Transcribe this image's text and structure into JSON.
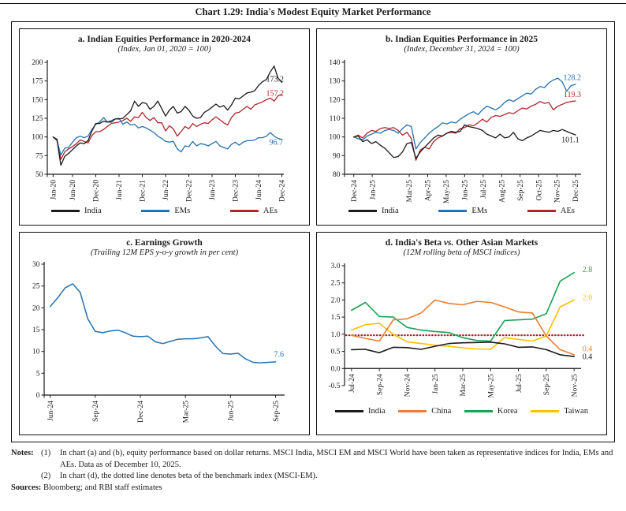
{
  "header": {
    "title": "Chart 1.29: India's Modest Equity Market Performance"
  },
  "colors": {
    "black": "#1a1a1a",
    "blue": "#2272b5",
    "red": "#b2242b",
    "orange": "#ed7d31",
    "green": "#1ca152",
    "yellow": "#ffc000",
    "dotted_red": "#a62024"
  },
  "chart_data": [
    {
      "id": "a",
      "type": "line",
      "title": "a. Indian Equities Performance in 2020-2024",
      "subtitle": "(Index, Jan 01, 2020 = 100)",
      "ylim": [
        50,
        200
      ],
      "yticks": [
        50,
        75,
        100,
        125,
        150,
        175,
        200
      ],
      "ytick_labels": [
        "50",
        "75",
        "100",
        "125",
        "150",
        "175",
        "200"
      ],
      "xlim": [
        -1.5,
        59.5
      ],
      "xticks": [
        {
          "pos": 0,
          "label": "Jan-20"
        },
        {
          "pos": 5,
          "label": "Jun-20"
        },
        {
          "pos": 11,
          "label": "Dec-20"
        },
        {
          "pos": 17,
          "label": "Jun-21"
        },
        {
          "pos": 23,
          "label": "Dec-21"
        },
        {
          "pos": 29,
          "label": "Jun-22"
        },
        {
          "pos": 35,
          "label": "Dec-22"
        },
        {
          "pos": 41,
          "label": "Jun-23"
        },
        {
          "pos": 47,
          "label": "Dec-23"
        },
        {
          "pos": 53,
          "label": "Jun-24"
        },
        {
          "pos": 59,
          "label": "Dec-24"
        }
      ],
      "series_x": [
        0,
        59
      ],
      "stroke_width": 1.3,
      "show_legend": true,
      "series": [
        {
          "name": "India",
          "color_key": "black",
          "values": [
            100,
            96,
            62,
            74,
            78,
            83,
            88,
            92,
            91,
            95,
            108,
            118,
            118,
            121,
            120,
            120,
            124,
            124,
            125,
            130,
            135,
            148,
            141,
            146,
            145,
            137,
            141,
            148,
            138,
            128,
            136,
            141,
            132,
            134,
            141,
            136,
            128,
            125,
            126,
            133,
            136,
            140,
            144,
            140,
            142,
            136,
            143,
            152,
            151,
            155,
            159,
            160,
            162,
            169,
            174,
            177,
            187,
            195,
            179,
            173.2
          ]
        },
        {
          "name": "EMs",
          "color_key": "blue",
          "values": [
            100,
            95,
            76,
            85,
            86,
            93,
            99,
            101,
            99,
            101,
            110,
            117,
            120,
            126,
            120,
            122,
            124,
            125,
            117,
            120,
            116,
            117,
            112,
            114,
            112,
            109,
            106,
            101,
            98,
            94,
            93,
            94,
            84,
            80,
            88,
            87,
            94,
            88,
            91,
            90,
            88,
            91,
            94,
            88,
            86,
            84,
            90,
            93,
            89,
            93,
            95,
            95,
            96,
            99,
            99,
            101,
            106,
            101,
            98,
            96.7
          ]
        },
        {
          "name": "AEs",
          "color_key": "red",
          "values": [
            100,
            97,
            70,
            80,
            84,
            87,
            91,
            96,
            94,
            92,
            102,
            107,
            107,
            110,
            114,
            118,
            119,
            120,
            122,
            125,
            121,
            127,
            126,
            133,
            126,
            122,
            126,
            119,
            119,
            108,
            115,
            111,
            101,
            107,
            114,
            111,
            118,
            114,
            117,
            119,
            118,
            123,
            127,
            123,
            119,
            116,
            126,
            132,
            133,
            137,
            141,
            137,
            143,
            145,
            147,
            150,
            152,
            148,
            155,
            157.2
          ]
        }
      ],
      "value_labels": [
        {
          "text": "173.2",
          "color_key": "black",
          "x": 59.5,
          "y": 174,
          "anchor": "end"
        },
        {
          "text": "157.2",
          "color_key": "red",
          "x": 59.5,
          "y": 155,
          "anchor": "end"
        },
        {
          "text": "96.7",
          "color_key": "blue",
          "x": 59.3,
          "y": 89.5,
          "anchor": "end"
        }
      ]
    },
    {
      "id": "b",
      "type": "line",
      "title": "b. Indian Equities Performance in 2025",
      "subtitle": "(Index, December 31, 2024 = 100)",
      "ylim": [
        80,
        140
      ],
      "yticks": [
        80,
        90,
        100,
        110,
        120,
        130,
        140
      ],
      "ytick_labels": [
        "80",
        "90",
        "100",
        "110",
        "120",
        "130",
        "140"
      ],
      "xlim": [
        -0.5,
        12.3
      ],
      "xticks": [
        {
          "pos": 0,
          "label": "Dec-24"
        },
        {
          "pos": 1,
          "label": "Jan-25"
        },
        {
          "pos": 3,
          "label": "Mar-25"
        },
        {
          "pos": 4,
          "label": "Apr-25"
        },
        {
          "pos": 5,
          "label": "May-25"
        },
        {
          "pos": 6,
          "label": "Jun-25"
        },
        {
          "pos": 7,
          "label": "Jul-25"
        },
        {
          "pos": 8,
          "label": "Aug-25"
        },
        {
          "pos": 9,
          "label": "Sep-25"
        },
        {
          "pos": 10,
          "label": "Oct-25"
        },
        {
          "pos": 11,
          "label": "Nov-25"
        },
        {
          "pos": 12,
          "label": "Dec-25"
        }
      ],
      "series_x": [
        0,
        12
      ],
      "stroke_width": 1.3,
      "show_legend": true,
      "series": [
        {
          "name": "India",
          "color_key": "black",
          "values": [
            100,
            100.5,
            97.5,
            98.5,
            96.5,
            97.5,
            95.5,
            94,
            91.5,
            89,
            89.5,
            92,
            96.5,
            97,
            88.5,
            92,
            94.5,
            97,
            99.5,
            101,
            100.5,
            102,
            103,
            102.5,
            103,
            106.5,
            105.5,
            105,
            104.5,
            103.5,
            101.5,
            100.5,
            99.5,
            101.5,
            99.5,
            100,
            102.5,
            99,
            98,
            99.5,
            100.5,
            102,
            103.5,
            103,
            102.5,
            103.5,
            103,
            104,
            103,
            102,
            101.1
          ]
        },
        {
          "name": "EMs",
          "color_key": "blue",
          "values": [
            100,
            99,
            98.5,
            100.5,
            101.5,
            102.5,
            102,
            103.5,
            104,
            103.5,
            102,
            104.5,
            106.5,
            105.5,
            93.5,
            97,
            99.5,
            102,
            104,
            105.5,
            107.5,
            107,
            108,
            107.5,
            109.5,
            111,
            112.5,
            113.5,
            112,
            114.5,
            116.5,
            115.5,
            114.5,
            116,
            118.5,
            120,
            119,
            120.5,
            122,
            123.5,
            123,
            125.5,
            127,
            126.5,
            129,
            130.5,
            131.5,
            129.5,
            124.5,
            127.5,
            128.2
          ]
        },
        {
          "name": "AEs",
          "color_key": "red",
          "values": [
            100,
            101,
            99.5,
            102,
            103.5,
            103,
            104.5,
            105,
            104.5,
            105,
            103.5,
            101,
            102.5,
            99,
            87.5,
            93,
            94.5,
            93.5,
            97.5,
            99.5,
            100.5,
            102,
            102.5,
            102,
            104.5,
            105,
            106.5,
            106,
            107.5,
            109.5,
            108,
            110.5,
            111.5,
            111,
            112,
            113,
            112.5,
            114,
            115.5,
            115,
            116.5,
            117.5,
            119,
            118,
            118.5,
            114.5,
            116.5,
            117.5,
            118.5,
            119,
            119.3
          ]
        }
      ],
      "value_labels": [
        {
          "text": "128.2",
          "color_key": "blue",
          "x": 12.3,
          "y": 130.5,
          "anchor": "end"
        },
        {
          "text": "119.3",
          "color_key": "red",
          "x": 12.3,
          "y": 121.5,
          "anchor": "end"
        },
        {
          "text": "101.1",
          "color_key": "black",
          "x": 12.2,
          "y": 97.2,
          "anchor": "end"
        }
      ]
    },
    {
      "id": "c",
      "type": "line",
      "title": "c. Earnings Growth",
      "subtitle": "(Trailing 12M EPS y-o-y growth in per cent)",
      "ylim": [
        0,
        30
      ],
      "yticks": [
        0,
        5,
        10,
        15,
        20,
        25,
        30
      ],
      "ytick_labels": [
        "0",
        "5",
        "10",
        "15",
        "20",
        "25",
        "30"
      ],
      "xlim": [
        -0.4,
        15.6
      ],
      "xticks": [
        {
          "pos": 0,
          "label": "Jun-24"
        },
        {
          "pos": 3,
          "label": "Sep-24"
        },
        {
          "pos": 6,
          "label": "Dec-24"
        },
        {
          "pos": 9,
          "label": "Mar-25"
        },
        {
          "pos": 12,
          "label": "Jun-25"
        },
        {
          "pos": 15,
          "label": "Sep-25"
        }
      ],
      "series_x": [
        0,
        15
      ],
      "stroke_width": 1.5,
      "show_legend": false,
      "series": [
        {
          "name": "EPS growth",
          "color_key": "blue",
          "values": [
            20.3,
            22.3,
            24.6,
            25.5,
            23.5,
            17.5,
            14.6,
            14.3,
            14.7,
            14.9,
            14.3,
            13.5,
            13.4,
            13.5,
            12.2,
            11.8,
            12.3,
            12.8,
            12.9,
            12.9,
            13.1,
            13.4,
            11.2,
            9.5,
            9.4,
            9.6,
            8.3,
            7.5,
            7.4,
            7.5,
            7.6
          ]
        }
      ],
      "value_labels": [
        {
          "text": "7.6",
          "color_key": "blue",
          "x": 15.55,
          "y": 8.8,
          "anchor": "end"
        }
      ]
    },
    {
      "id": "d",
      "type": "line",
      "title": "d. India's Beta vs. Other Asian Markets",
      "title_pre": "d. India's Beta ",
      "title_vs": "vs.",
      "title_post": " Other Asian Markets",
      "subtitle": "(12M rolling beta of MSCI indices)",
      "ylim": [
        -0.5,
        3.0
      ],
      "yticks": [
        -0.5,
        0,
        0.5,
        1,
        1.5,
        2,
        2.5,
        3
      ],
      "ytick_labels": [
        "-0.5",
        "0.0",
        "0.5",
        "1.0",
        "1.5",
        "2.0",
        "2.5",
        "3.0"
      ],
      "xlim": [
        -0.5,
        16.5
      ],
      "xaxis_at": 0,
      "benchmark_line": {
        "y": 0.97,
        "color_key": "dotted_red"
      },
      "xticks": [
        {
          "pos": 0,
          "label": "Jul-24"
        },
        {
          "pos": 2,
          "label": "Sep-24"
        },
        {
          "pos": 4,
          "label": "Nov-24"
        },
        {
          "pos": 6,
          "label": "Jan-25"
        },
        {
          "pos": 8,
          "label": "Mar-25"
        },
        {
          "pos": 10,
          "label": "May-25"
        },
        {
          "pos": 12,
          "label": "Jul-25"
        },
        {
          "pos": 14,
          "label": "Sep-25"
        },
        {
          "pos": 16,
          "label": "Nov-25"
        }
      ],
      "series_x": [
        0,
        16
      ],
      "stroke_width": 1.6,
      "show_legend": true,
      "series": [
        {
          "name": "India",
          "color_key": "black",
          "values": [
            0.55,
            0.56,
            0.46,
            0.62,
            0.61,
            0.56,
            0.65,
            0.73,
            0.75,
            0.76,
            0.77,
            0.72,
            0.62,
            0.63,
            0.55,
            0.4,
            0.35
          ]
        },
        {
          "name": "China",
          "color_key": "orange",
          "values": [
            0.97,
            0.88,
            0.8,
            1.42,
            1.45,
            1.62,
            2.0,
            1.9,
            1.86,
            1.96,
            1.93,
            1.8,
            1.65,
            1.62,
            0.95,
            0.55,
            0.4
          ]
        },
        {
          "name": "Korea",
          "color_key": "green",
          "values": [
            1.7,
            1.93,
            1.52,
            1.5,
            1.2,
            1.12,
            1.08,
            1.05,
            0.9,
            0.82,
            0.8,
            1.4,
            1.42,
            1.44,
            1.6,
            2.55,
            2.8
          ]
        },
        {
          "name": "Taiwan",
          "color_key": "yellow",
          "values": [
            1.12,
            1.28,
            1.32,
            1.0,
            0.78,
            0.73,
            0.68,
            0.65,
            0.6,
            0.57,
            0.56,
            0.9,
            0.85,
            0.8,
            0.95,
            1.8,
            2.0
          ]
        }
      ],
      "value_labels": [
        {
          "text": "2.8",
          "color_key": "green",
          "x": 16.6,
          "y": 2.82,
          "anchor": "start"
        },
        {
          "text": "2.0",
          "color_key": "yellow",
          "x": 16.6,
          "y": 2.0,
          "anchor": "start"
        },
        {
          "text": "0.4",
          "color_key": "orange",
          "x": 16.6,
          "y": 0.5,
          "anchor": "start"
        },
        {
          "text": "0.4",
          "color_key": "black",
          "x": 16.6,
          "y": 0.27,
          "anchor": "start"
        }
      ]
    }
  ],
  "notes": {
    "label": "Notes:",
    "items": [
      {
        "num": "(1)",
        "text": "In chart (a) and (b), equity performance based on dollar returns. MSCI India, MSCI EM and MSCI World have been taken as representative indices for India, EMs and AEs. Data as of December 10, 2025."
      },
      {
        "num": "(2)",
        "text": "In chart (d), the dotted line denotes beta of the benchmark index (MSCI-EM)."
      }
    ],
    "sources_label": "Sources:",
    "sources_text": "Bloomberg; and RBI staff estimates"
  }
}
